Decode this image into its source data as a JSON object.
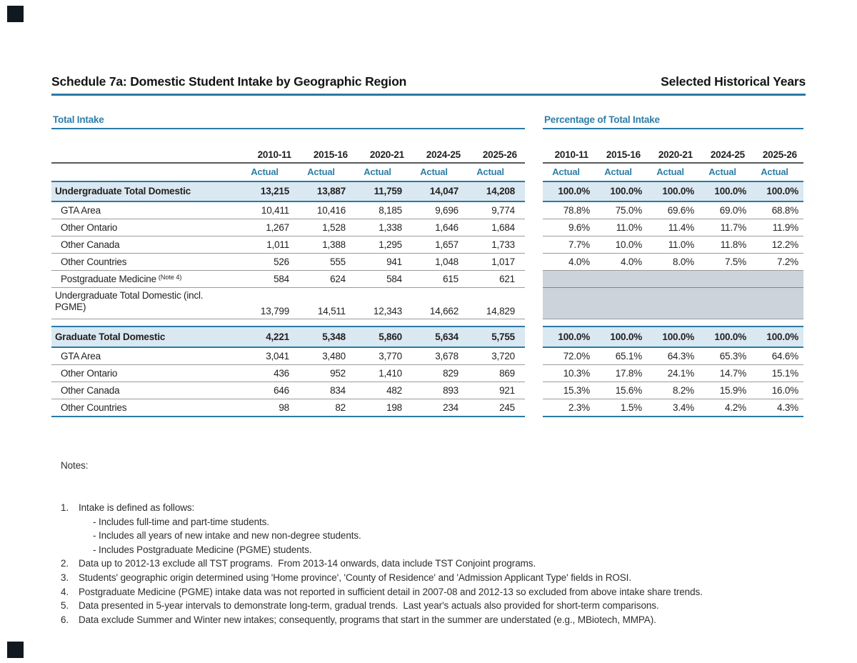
{
  "header": {
    "title_left": "Schedule 7a: Domestic Student Intake by Geographic Region",
    "title_right": "Selected Historical Years"
  },
  "left_table": {
    "section_title": "Total Intake"
  },
  "right_table": {
    "section_title": "Percentage of Total Intake"
  },
  "columns": [
    "2010-11",
    "2015-16",
    "2020-21",
    "2024-25",
    "2025-26"
  ],
  "actual_label": "Actual",
  "rows": [
    {
      "style": "total",
      "label": "Undergraduate Total Domestic",
      "values": [
        "13,215",
        "13,887",
        "11,759",
        "14,047",
        "14,208"
      ],
      "pcts": [
        "100.0%",
        "100.0%",
        "100.0%",
        "100.0%",
        "100.0%"
      ]
    },
    {
      "style": "sub",
      "label": "GTA Area",
      "values": [
        "10,411",
        "10,416",
        "8,185",
        "9,696",
        "9,774"
      ],
      "pcts": [
        "78.8%",
        "75.0%",
        "69.6%",
        "69.0%",
        "68.8%"
      ]
    },
    {
      "style": "sub",
      "label": "Other Ontario",
      "values": [
        "1,267",
        "1,528",
        "1,338",
        "1,646",
        "1,684"
      ],
      "pcts": [
        "9.6%",
        "11.0%",
        "11.4%",
        "11.7%",
        "11.9%"
      ]
    },
    {
      "style": "sub",
      "label": "Other Canada",
      "values": [
        "1,011",
        "1,388",
        "1,295",
        "1,657",
        "1,733"
      ],
      "pcts": [
        "7.7%",
        "10.0%",
        "11.0%",
        "11.8%",
        "12.2%"
      ]
    },
    {
      "style": "sub",
      "label": "Other Countries",
      "values": [
        "526",
        "555",
        "941",
        "1,048",
        "1,017"
      ],
      "pcts": [
        "4.0%",
        "4.0%",
        "8.0%",
        "7.5%",
        "7.2%"
      ]
    },
    {
      "style": "sub",
      "label": "Postgraduate Medicine",
      "note": "(Note 4)",
      "values": [
        "584",
        "624",
        "584",
        "615",
        "621"
      ],
      "pcts": null
    },
    {
      "style": "tall",
      "label": "Undergraduate Total Domestic (incl. PGME)",
      "values": [
        "13,799",
        "14,511",
        "12,343",
        "14,662",
        "14,829"
      ],
      "pcts": null
    },
    {
      "style": "gap"
    },
    {
      "style": "total",
      "label": "Graduate Total Domestic",
      "values": [
        "4,221",
        "5,348",
        "5,860",
        "5,634",
        "5,755"
      ],
      "pcts": [
        "100.0%",
        "100.0%",
        "100.0%",
        "100.0%",
        "100.0%"
      ]
    },
    {
      "style": "sub",
      "label": "GTA Area",
      "values": [
        "3,041",
        "3,480",
        "3,770",
        "3,678",
        "3,720"
      ],
      "pcts": [
        "72.0%",
        "65.1%",
        "64.3%",
        "65.3%",
        "64.6%"
      ]
    },
    {
      "style": "sub",
      "label": "Other Ontario",
      "values": [
        "436",
        "952",
        "1,410",
        "829",
        "869"
      ],
      "pcts": [
        "10.3%",
        "17.8%",
        "24.1%",
        "14.7%",
        "15.1%"
      ]
    },
    {
      "style": "sub",
      "label": "Other Canada",
      "values": [
        "646",
        "834",
        "482",
        "893",
        "921"
      ],
      "pcts": [
        "15.3%",
        "15.6%",
        "8.2%",
        "15.9%",
        "16.0%"
      ]
    },
    {
      "style": "sub",
      "label": "Other Countries",
      "values": [
        "98",
        "82",
        "198",
        "234",
        "245"
      ],
      "pcts": [
        "2.3%",
        "1.5%",
        "3.4%",
        "4.2%",
        "4.3%"
      ]
    }
  ],
  "notes": {
    "heading": "Notes:",
    "items": [
      {
        "num": "1.",
        "text": "Intake is defined as follows:",
        "subs": [
          "- Includes full-time and part-time students.",
          "- Includes all years of new intake and new non-degree students.",
          "- Includes Postgraduate Medicine (PGME) students."
        ]
      },
      {
        "num": "2.",
        "text": "Data up to 2012-13 exclude all TST programs.  From 2013-14 onwards, data include TST Conjoint programs."
      },
      {
        "num": "3.",
        "text": "Students' geographic origin determined using 'Home province', 'County of Residence' and 'Admission Applicant Type' fields in ROSI."
      },
      {
        "num": "4.",
        "text": "Postgraduate Medicine (PGME) intake data was not reported in sufficient detail in 2007-08 and 2012-13 so excluded from above intake share trends."
      },
      {
        "num": "5.",
        "text": "Data presented in 5-year intervals to demonstrate long-term, gradual trends.  Last year's actuals also provided for short-term comparisons."
      },
      {
        "num": "6.",
        "text": "Data exclude Summer and Winter new intakes; consequently, programs that start in the summer are understated (e.g., MBiotech, MMPA)."
      }
    ]
  },
  "colors": {
    "accent_blue": "#2a7aa3",
    "heading_blue": "#2d7ea8",
    "highlight_row_bg": "#d9e8f1",
    "suppressed_cell_bg": "#ccd3db",
    "corner_square": "#101820"
  }
}
